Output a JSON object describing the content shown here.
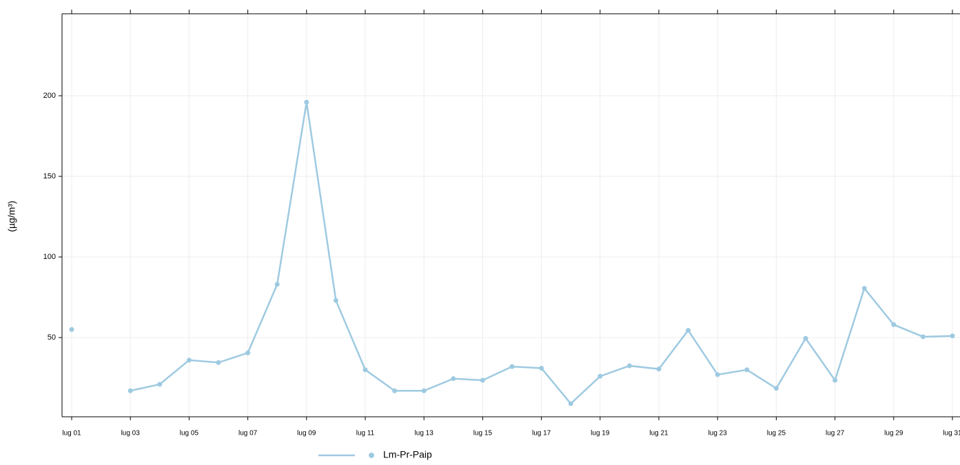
{
  "chart_data": {
    "type": "line",
    "y_label": "(µg/m³)",
    "categories": [
      "lug 01",
      null,
      "lug 03",
      null,
      "lug 05",
      null,
      "lug 07",
      null,
      "lug 09",
      null,
      "lug 11",
      null,
      "lug 13",
      null,
      "lug 15",
      null,
      "lug 17",
      null,
      "lug 19",
      null,
      "lug 21",
      null,
      "lug 23",
      null,
      "lug 25",
      null,
      "lug 27",
      null,
      "lug 29",
      null,
      "lug 31"
    ],
    "series": [
      {
        "name": "Lm-Pr-Paip",
        "color": "#9ecae1",
        "values": [
          55,
          null,
          17,
          21,
          36,
          34.5,
          40.5,
          83,
          196,
          73,
          30,
          17,
          17,
          24.5,
          23.5,
          32,
          31,
          9,
          26,
          32.5,
          30.5,
          54.5,
          27,
          30,
          18.5,
          49.5,
          23.5,
          80.5,
          58,
          50.5,
          51
        ]
      }
    ],
    "ylim": [
      0,
      250
    ],
    "yticks": [
      50,
      100,
      150,
      200
    ],
    "grid": true,
    "legend": "bottom"
  }
}
